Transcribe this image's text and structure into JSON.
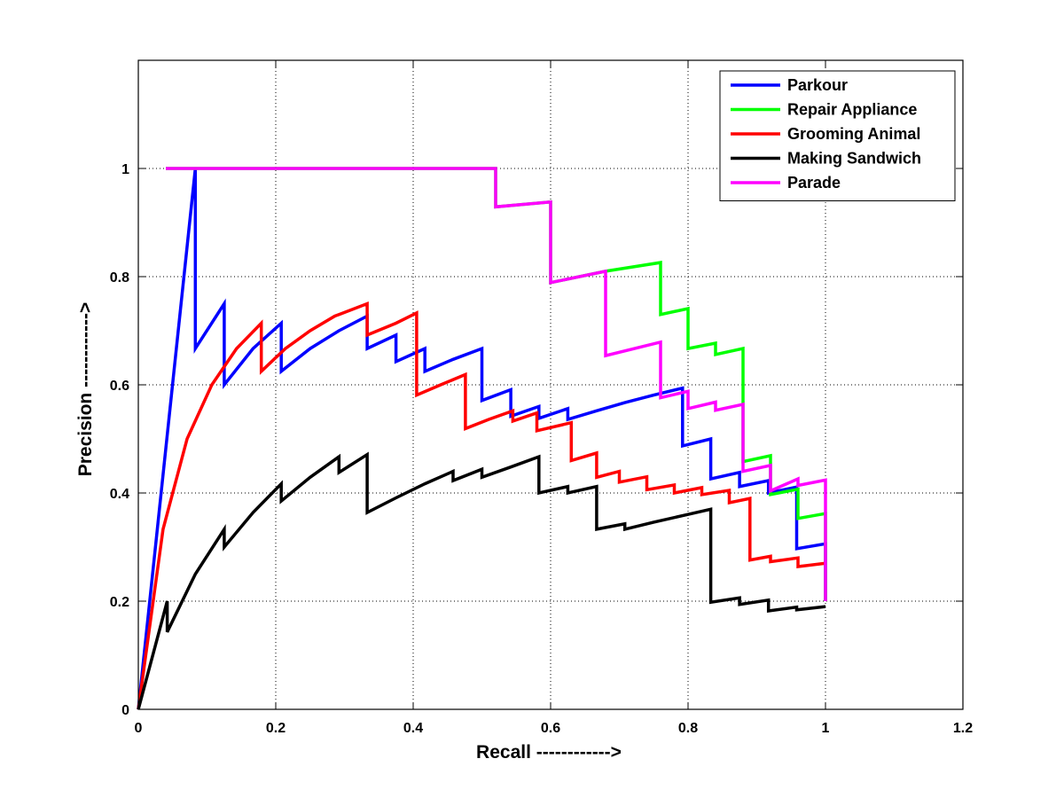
{
  "chart_data": {
    "type": "line",
    "title": "",
    "xlabel": "Recall ------------>",
    "ylabel": "Precision ------------>",
    "xlim": [
      0,
      1.2
    ],
    "ylim": [
      0,
      1.2
    ],
    "xticks": [
      0,
      0.2,
      0.4,
      0.6,
      0.8,
      1,
      1.2
    ],
    "xtick_labels": [
      "0",
      "0.2",
      "0.4",
      "0.6",
      "0.8",
      "1",
      "1.2"
    ],
    "yticks": [
      0,
      0.2,
      0.4,
      0.6,
      0.8,
      1
    ],
    "ytick_labels": [
      "0",
      "0.2",
      "0.4",
      "0.6",
      "0.8",
      "1"
    ],
    "grid": true,
    "legend_position": "top-right",
    "series": [
      {
        "name": "Parkour",
        "color": "#0000ff",
        "points": [
          [
            0,
            0
          ],
          [
            0.083,
            1
          ],
          [
            0.083,
            0.667
          ],
          [
            0.125,
            0.75
          ],
          [
            0.125,
            0.6
          ],
          [
            0.167,
            0.667
          ],
          [
            0.208,
            0.714
          ],
          [
            0.208,
            0.625
          ],
          [
            0.25,
            0.667
          ],
          [
            0.292,
            0.7
          ],
          [
            0.333,
            0.727
          ],
          [
            0.333,
            0.667
          ],
          [
            0.375,
            0.692
          ],
          [
            0.375,
            0.643
          ],
          [
            0.417,
            0.667
          ],
          [
            0.417,
            0.625
          ],
          [
            0.458,
            0.647
          ],
          [
            0.5,
            0.667
          ],
          [
            0.5,
            0.571
          ],
          [
            0.542,
            0.591
          ],
          [
            0.542,
            0.542
          ],
          [
            0.583,
            0.56
          ],
          [
            0.583,
            0.538
          ],
          [
            0.625,
            0.556
          ],
          [
            0.625,
            0.536
          ],
          [
            0.667,
            0.552
          ],
          [
            0.708,
            0.567
          ],
          [
            0.75,
            0.581
          ],
          [
            0.792,
            0.594
          ],
          [
            0.792,
            0.487
          ],
          [
            0.833,
            0.5
          ],
          [
            0.833,
            0.426
          ],
          [
            0.875,
            0.438
          ],
          [
            0.875,
            0.412
          ],
          [
            0.917,
            0.423
          ],
          [
            0.917,
            0.4
          ],
          [
            0.958,
            0.411
          ],
          [
            0.958,
            0.297
          ],
          [
            1,
            0.306
          ],
          [
            1,
            0.2
          ]
        ]
      },
      {
        "name": "Repair Appliance",
        "color": "#00ff00",
        "points": [
          [
            0.04,
            1
          ],
          [
            0.52,
            1
          ],
          [
            0.52,
            0.929
          ],
          [
            0.6,
            0.938
          ],
          [
            0.6,
            0.789
          ],
          [
            0.68,
            0.81
          ],
          [
            0.76,
            0.826
          ],
          [
            0.76,
            0.73
          ],
          [
            0.8,
            0.741
          ],
          [
            0.8,
            0.667
          ],
          [
            0.84,
            0.677
          ],
          [
            0.84,
            0.656
          ],
          [
            0.88,
            0.667
          ],
          [
            0.88,
            0.458
          ],
          [
            0.92,
            0.469
          ],
          [
            0.92,
            0.397
          ],
          [
            0.96,
            0.407
          ],
          [
            0.96,
            0.353
          ],
          [
            1,
            0.362
          ],
          [
            1,
            0.2
          ]
        ]
      },
      {
        "name": "Grooming Animal",
        "color": "#ff0000",
        "points": [
          [
            0,
            0
          ],
          [
            0.036,
            0.333
          ],
          [
            0.071,
            0.5
          ],
          [
            0.107,
            0.6
          ],
          [
            0.143,
            0.667
          ],
          [
            0.179,
            0.714
          ],
          [
            0.179,
            0.625
          ],
          [
            0.214,
            0.667
          ],
          [
            0.25,
            0.7
          ],
          [
            0.286,
            0.727
          ],
          [
            0.333,
            0.75
          ],
          [
            0.333,
            0.692
          ],
          [
            0.375,
            0.714
          ],
          [
            0.405,
            0.733
          ],
          [
            0.405,
            0.581
          ],
          [
            0.44,
            0.6
          ],
          [
            0.476,
            0.619
          ],
          [
            0.476,
            0.519
          ],
          [
            0.51,
            0.536
          ],
          [
            0.545,
            0.552
          ],
          [
            0.545,
            0.533
          ],
          [
            0.58,
            0.548
          ],
          [
            0.58,
            0.515
          ],
          [
            0.63,
            0.53
          ],
          [
            0.63,
            0.46
          ],
          [
            0.667,
            0.474
          ],
          [
            0.667,
            0.429
          ],
          [
            0.7,
            0.44
          ],
          [
            0.7,
            0.42
          ],
          [
            0.74,
            0.43
          ],
          [
            0.74,
            0.406
          ],
          [
            0.78,
            0.415
          ],
          [
            0.78,
            0.4
          ],
          [
            0.82,
            0.41
          ],
          [
            0.82,
            0.397
          ],
          [
            0.86,
            0.405
          ],
          [
            0.86,
            0.382
          ],
          [
            0.89,
            0.39
          ],
          [
            0.89,
            0.276
          ],
          [
            0.92,
            0.283
          ],
          [
            0.92,
            0.273
          ],
          [
            0.96,
            0.28
          ],
          [
            0.96,
            0.264
          ],
          [
            1,
            0.27
          ]
        ]
      },
      {
        "name": "Making Sandwich",
        "color": "#000000",
        "points": [
          [
            0,
            0
          ],
          [
            0.042,
            0.2
          ],
          [
            0.042,
            0.143
          ],
          [
            0.083,
            0.25
          ],
          [
            0.125,
            0.333
          ],
          [
            0.125,
            0.3
          ],
          [
            0.167,
            0.364
          ],
          [
            0.208,
            0.417
          ],
          [
            0.208,
            0.385
          ],
          [
            0.25,
            0.429
          ],
          [
            0.292,
            0.467
          ],
          [
            0.292,
            0.438
          ],
          [
            0.333,
            0.471
          ],
          [
            0.333,
            0.364
          ],
          [
            0.375,
            0.391
          ],
          [
            0.417,
            0.417
          ],
          [
            0.458,
            0.44
          ],
          [
            0.458,
            0.423
          ],
          [
            0.5,
            0.444
          ],
          [
            0.5,
            0.429
          ],
          [
            0.542,
            0.448
          ],
          [
            0.583,
            0.467
          ],
          [
            0.583,
            0.4
          ],
          [
            0.625,
            0.412
          ],
          [
            0.625,
            0.4
          ],
          [
            0.667,
            0.412
          ],
          [
            0.667,
            0.333
          ],
          [
            0.708,
            0.343
          ],
          [
            0.708,
            0.333
          ],
          [
            0.75,
            0.346
          ],
          [
            0.792,
            0.358
          ],
          [
            0.833,
            0.37
          ],
          [
            0.833,
            0.198
          ],
          [
            0.875,
            0.206
          ],
          [
            0.875,
            0.194
          ],
          [
            0.917,
            0.202
          ],
          [
            0.917,
            0.182
          ],
          [
            0.958,
            0.189
          ],
          [
            0.958,
            0.184
          ],
          [
            1,
            0.19
          ]
        ]
      },
      {
        "name": "Parade",
        "color": "#ff00ff",
        "points": [
          [
            0.04,
            1
          ],
          [
            0.52,
            1
          ],
          [
            0.52,
            0.929
          ],
          [
            0.6,
            0.938
          ],
          [
            0.6,
            0.789
          ],
          [
            0.68,
            0.81
          ],
          [
            0.68,
            0.654
          ],
          [
            0.76,
            0.679
          ],
          [
            0.76,
            0.576
          ],
          [
            0.8,
            0.588
          ],
          [
            0.8,
            0.556
          ],
          [
            0.84,
            0.568
          ],
          [
            0.84,
            0.553
          ],
          [
            0.88,
            0.564
          ],
          [
            0.88,
            0.44
          ],
          [
            0.92,
            0.451
          ],
          [
            0.92,
            0.404
          ],
          [
            0.96,
            0.426
          ],
          [
            0.96,
            0.414
          ],
          [
            1,
            0.424
          ],
          [
            1,
            0.2
          ]
        ]
      }
    ]
  }
}
